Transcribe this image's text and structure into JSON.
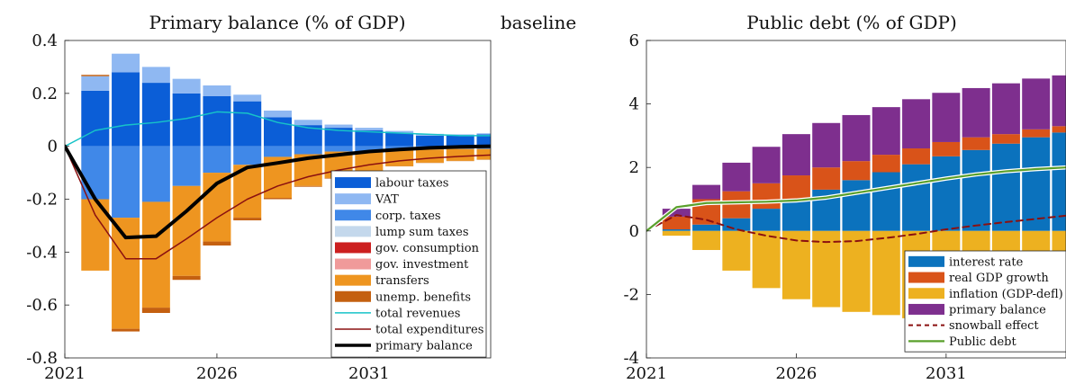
{
  "figure": {
    "center_label": "baseline"
  },
  "chart_data": [
    {
      "type": "bar",
      "title": "Primary balance (% of GDP)",
      "xlabel": "",
      "ylabel": "",
      "ylim": [
        -0.8,
        0.4
      ],
      "y_ticks": [
        -0.8,
        -0.6,
        -0.4,
        -0.2,
        0,
        0.2,
        0.4
      ],
      "y_tick_labels": [
        "-0.8",
        "-0.6",
        "-0.4",
        "-0.2",
        "0",
        "0.2",
        "0.4"
      ],
      "x_range": [
        2021,
        2035
      ],
      "x_ticks": [
        2021,
        2026,
        2031
      ],
      "x_tick_labels": [
        "2021",
        "2026",
        "2031"
      ],
      "grid": false,
      "stacked": true,
      "legend_position": "bottom-right",
      "categories": [
        2022,
        2023,
        2024,
        2025,
        2026,
        2027,
        2028,
        2029,
        2030,
        2031,
        2032,
        2033,
        2034,
        2035
      ],
      "bar_series": [
        {
          "name": "labour taxes",
          "color": "#0b5ed7",
          "values": [
            0.21,
            0.28,
            0.24,
            0.2,
            0.19,
            0.17,
            0.11,
            0.08,
            0.07,
            0.06,
            0.05,
            0.04,
            0.04,
            0.045
          ]
        },
        {
          "name": "VAT",
          "color": "#8fb8f2",
          "values": [
            0.055,
            0.07,
            0.06,
            0.055,
            0.04,
            0.025,
            0.025,
            0.02,
            0.012,
            0.01,
            0.008,
            0.007,
            0.005,
            0.004
          ]
        },
        {
          "name": "corp. taxes",
          "color": "#4088e8",
          "values": [
            -0.2,
            -0.27,
            -0.21,
            -0.15,
            -0.1,
            -0.07,
            -0.04,
            -0.03,
            -0.02,
            -0.02,
            -0.015,
            -0.012,
            -0.01,
            -0.01
          ]
        },
        {
          "name": "lump sum taxes",
          "color": "#c4d8ec",
          "values": [
            0,
            0,
            0,
            0,
            0,
            0,
            0,
            0,
            0,
            0,
            0,
            0,
            0,
            0
          ]
        },
        {
          "name": "gov. consumption",
          "color": "#cc1f1f",
          "values": [
            0,
            0,
            0,
            0,
            0,
            0,
            0,
            0,
            0,
            0,
            0,
            0,
            0,
            0
          ]
        },
        {
          "name": "gov. investment",
          "color": "#f09a9a",
          "values": [
            0,
            0,
            0,
            0,
            0,
            0,
            0,
            0,
            0,
            0,
            0,
            0,
            0,
            0
          ]
        },
        {
          "name": "transfers",
          "color": "#ee9520",
          "values": [
            -0.27,
            -0.42,
            -0.4,
            -0.34,
            -0.26,
            -0.2,
            -0.155,
            -0.12,
            -0.1,
            -0.08,
            -0.06,
            -0.05,
            -0.045,
            -0.04
          ]
        },
        {
          "name": "unemp. benefits",
          "color": "#c46010",
          "values": [
            0.005,
            -0.01,
            -0.02,
            -0.015,
            -0.015,
            -0.01,
            -0.005,
            -0.003,
            -0.002,
            -0.002,
            -0.001,
            -0.001,
            -0.001,
            -0.001
          ]
        }
      ],
      "line_series": [
        {
          "name": "total revenues",
          "color": "#17c3c8",
          "width": 1.5,
          "dash": "",
          "x": [
            2021,
            2022,
            2023,
            2024,
            2025,
            2026,
            2027,
            2028,
            2029,
            2030,
            2031,
            2032,
            2033,
            2034,
            2035
          ],
          "y": [
            0,
            0.06,
            0.08,
            0.09,
            0.105,
            0.13,
            0.125,
            0.09,
            0.07,
            0.06,
            0.055,
            0.05,
            0.045,
            0.04,
            0.04
          ]
        },
        {
          "name": "total expenditures",
          "color": "#8b1010",
          "width": 1.5,
          "dash": "",
          "x": [
            2021,
            2022,
            2023,
            2024,
            2025,
            2026,
            2027,
            2028,
            2029,
            2030,
            2031,
            2032,
            2033,
            2034,
            2035
          ],
          "y": [
            0,
            -0.26,
            -0.425,
            -0.425,
            -0.35,
            -0.27,
            -0.2,
            -0.15,
            -0.115,
            -0.09,
            -0.07,
            -0.055,
            -0.045,
            -0.038,
            -0.033
          ]
        },
        {
          "name": "primary balance",
          "color": "#000000",
          "width": 4,
          "dash": "",
          "x": [
            2021,
            2022,
            2023,
            2024,
            2025,
            2026,
            2027,
            2028,
            2029,
            2030,
            2031,
            2032,
            2033,
            2034,
            2035
          ],
          "y": [
            0,
            -0.2,
            -0.345,
            -0.34,
            -0.245,
            -0.14,
            -0.08,
            -0.063,
            -0.045,
            -0.032,
            -0.02,
            -0.012,
            -0.006,
            -0.002,
            0
          ]
        }
      ]
    },
    {
      "type": "bar",
      "title": "Public debt (% of GDP)",
      "xlabel": "",
      "ylabel": "",
      "ylim": [
        -4,
        6
      ],
      "y_ticks": [
        -4,
        -2,
        0,
        2,
        4,
        6
      ],
      "y_tick_labels": [
        "-4",
        "-2",
        "0",
        "2",
        "4",
        "6"
      ],
      "x_range": [
        2021,
        2035
      ],
      "x_ticks": [
        2021,
        2026,
        2031
      ],
      "x_tick_labels": [
        "2021",
        "2026",
        "2031"
      ],
      "grid": false,
      "stacked": true,
      "legend_position": "bottom-right",
      "categories": [
        2022,
        2023,
        2024,
        2025,
        2026,
        2027,
        2028,
        2029,
        2030,
        2031,
        2032,
        2033,
        2034,
        2035
      ],
      "bar_series": [
        {
          "name": "interest rate",
          "color": "#0b72bd",
          "values": [
            0.05,
            0.2,
            0.4,
            0.7,
            0.95,
            1.3,
            1.6,
            1.85,
            2.1,
            2.35,
            2.55,
            2.75,
            2.95,
            3.1
          ]
        },
        {
          "name": "real GDP growth",
          "color": "#d95319",
          "values": [
            0.4,
            0.8,
            0.85,
            0.8,
            0.8,
            0.7,
            0.6,
            0.55,
            0.5,
            0.45,
            0.4,
            0.3,
            0.25,
            0.2
          ]
        },
        {
          "name": "inflation (GDP-defl)",
          "color": "#edb120",
          "values": [
            -0.15,
            -0.6,
            -1.25,
            -1.8,
            -2.15,
            -2.4,
            -2.55,
            -2.65,
            -2.75,
            -2.8,
            -2.85,
            -2.85,
            -2.85,
            -2.85
          ]
        },
        {
          "name": "primary balance",
          "color": "#7e2f8e",
          "values": [
            0.25,
            0.45,
            0.9,
            1.15,
            1.3,
            1.4,
            1.45,
            1.5,
            1.55,
            1.55,
            1.55,
            1.6,
            1.6,
            1.6
          ]
        }
      ],
      "line_series": [
        {
          "name": "snowball effect",
          "color": "#8b1010",
          "width": 2,
          "dash": "7,5",
          "x": [
            2021,
            2022,
            2023,
            2024,
            2025,
            2026,
            2027,
            2028,
            2029,
            2030,
            2031,
            2032,
            2033,
            2034,
            2035
          ],
          "y": [
            0,
            0.5,
            0.35,
            0.05,
            -0.15,
            -0.3,
            -0.35,
            -0.32,
            -0.22,
            -0.1,
            0.05,
            0.17,
            0.28,
            0.38,
            0.48
          ]
        },
        {
          "name": "Public debt",
          "color": "#5aa02c",
          "width": 2.2,
          "dash": "",
          "halo": true,
          "x": [
            2021,
            2022,
            2023,
            2024,
            2025,
            2026,
            2027,
            2028,
            2029,
            2030,
            2031,
            2032,
            2033,
            2034,
            2035
          ],
          "y": [
            0,
            0.75,
            0.88,
            0.9,
            0.92,
            0.96,
            1.05,
            1.2,
            1.35,
            1.5,
            1.65,
            1.78,
            1.88,
            1.95,
            2.0
          ]
        }
      ]
    }
  ]
}
